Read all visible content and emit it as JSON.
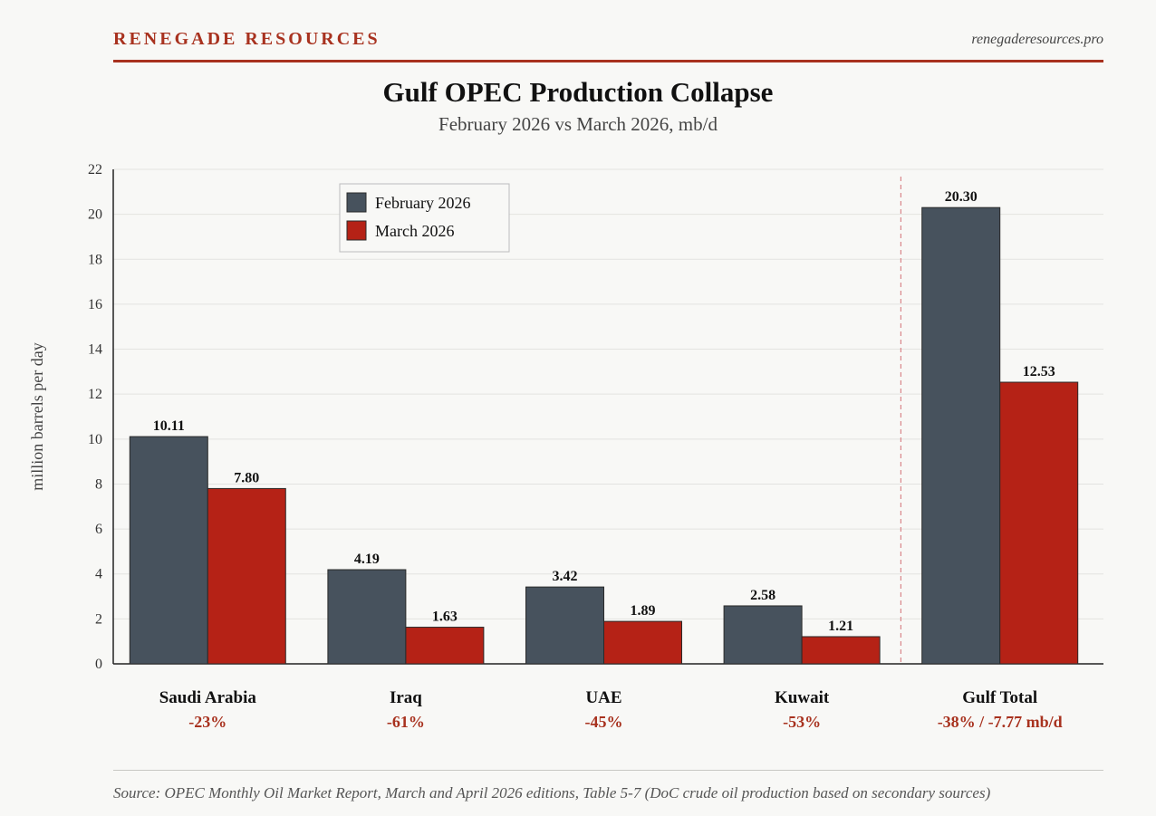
{
  "header": {
    "brand": "RENEGADE RESOURCES",
    "site": "renegaderesources.pro"
  },
  "colors": {
    "accent": "#a8321f",
    "february": "#47525d",
    "march": "#b52216",
    "grid": "#e3e3e0"
  },
  "chart_data": {
    "type": "bar",
    "title": "Gulf OPEC Production Collapse",
    "subtitle": "February 2026 vs March 2026, mb/d",
    "ylabel": "million barrels per day",
    "xlabel": "",
    "ylim": [
      0,
      22
    ],
    "yticks": [
      0,
      2,
      4,
      6,
      8,
      10,
      12,
      14,
      16,
      18,
      20,
      22
    ],
    "grid": true,
    "legend_position": "top-left",
    "categories": [
      "Saudi Arabia",
      "Iraq",
      "UAE",
      "Kuwait",
      "Gulf Total"
    ],
    "changes": [
      "-23%",
      "-61%",
      "-45%",
      "-53%",
      "-38% / -7.77 mb/d"
    ],
    "series": [
      {
        "name": "February 2026",
        "values": [
          10.11,
          4.19,
          3.42,
          2.58,
          20.3
        ],
        "labels": [
          "10.11",
          "4.19",
          "3.42",
          "2.58",
          "20.30"
        ]
      },
      {
        "name": "March 2026",
        "values": [
          7.8,
          1.63,
          1.89,
          1.21,
          12.53
        ],
        "labels": [
          "7.80",
          "1.63",
          "1.89",
          "1.21",
          "12.53"
        ]
      }
    ],
    "separator_before": "Gulf Total"
  },
  "footer": {
    "source": "Source: OPEC Monthly Oil Market Report, March and April 2026 editions, Table 5-7 (DoC crude oil production based on secondary sources)"
  }
}
